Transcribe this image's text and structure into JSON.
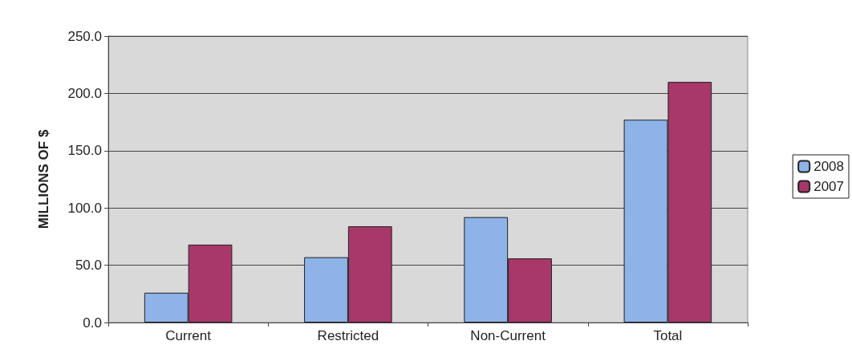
{
  "chart_data": {
    "type": "bar",
    "ylabel": "MILLIONS OF $",
    "categories": [
      "Current",
      "Restricted",
      "Non-Current",
      "Total"
    ],
    "series": [
      {
        "name": "2008",
        "color": "#8db3e8",
        "values": [
          26,
          57,
          92,
          177
        ]
      },
      {
        "name": "2007",
        "color": "#a8386a",
        "values": [
          68,
          84,
          56,
          210
        ]
      }
    ],
    "ylim": [
      0,
      250
    ],
    "yticks": [
      {
        "value": 0,
        "label": "0.0"
      },
      {
        "value": 50,
        "label": "50.0"
      },
      {
        "value": 100,
        "label": "100.0"
      },
      {
        "value": 150,
        "label": "150.0"
      },
      {
        "value": 200,
        "label": "200.0"
      },
      {
        "value": 250,
        "label": "250.0"
      }
    ],
    "grid": "y",
    "legend": "right"
  }
}
